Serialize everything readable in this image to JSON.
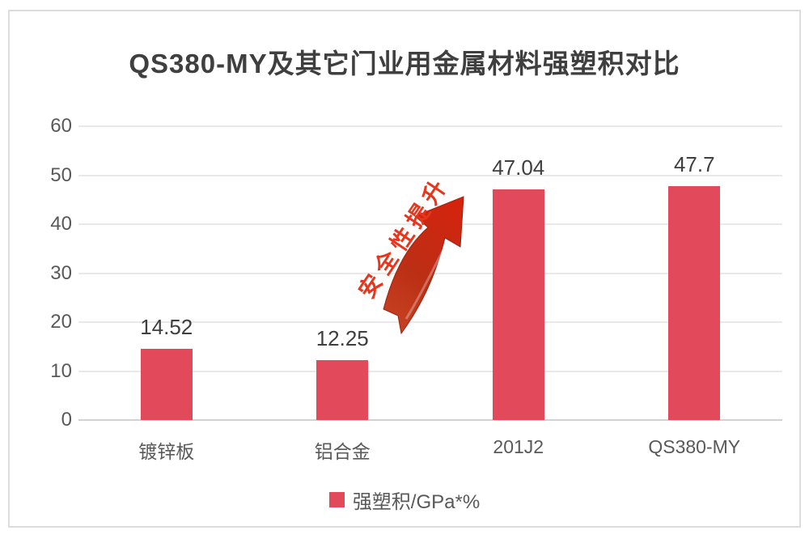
{
  "chart_data": {
    "type": "bar",
    "title": "QS380-MY及其它门业用金属材料强塑积对比",
    "categories": [
      "镀锌板",
      "铝合金",
      "201J2",
      "QS380-MY"
    ],
    "values": [
      14.52,
      12.25,
      47.04,
      47.7
    ],
    "value_labels": [
      "14.52",
      "12.25",
      "47.04",
      "47.7"
    ],
    "ylabel": "",
    "xlabel": "",
    "ylim": [
      0,
      60
    ],
    "yticks": [
      0,
      10,
      20,
      30,
      40,
      50,
      60
    ],
    "grid": true,
    "legend_position": "bottom",
    "legend_label": "强塑积/GPa*%",
    "bar_color": "#e2495b",
    "annotation": {
      "text": "安全性提升",
      "color": "#e8361c"
    },
    "colors": {
      "title_text": "#3f3f3f",
      "axis_text": "#595959",
      "gridline": "#e9e9e9",
      "frame_border": "#dcdcdc",
      "arrow_red": "#dd1f0c"
    }
  }
}
